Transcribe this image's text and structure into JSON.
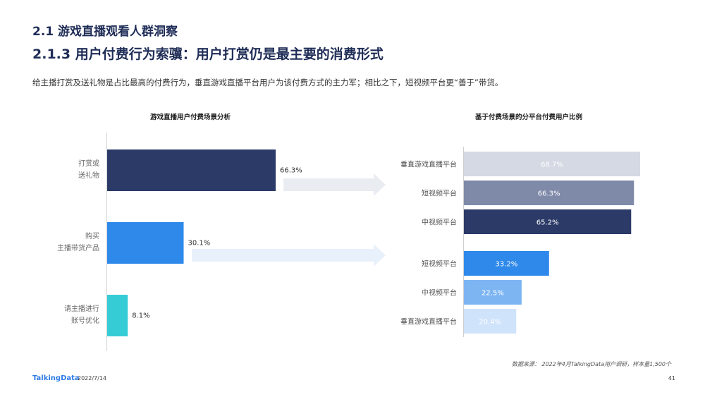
{
  "header": {
    "section": "2.1 游戏直播观看人群洞察",
    "title": "2.1.3 用户付费行为索骥：用户打赏仍是最主要的消费形式",
    "description": "给主播打赏及送礼物是占比最高的付费行为，垂直游戏直播平台用户为该付费方式的主力军；相比之下，短视频平台更“善于”带货。"
  },
  "chart_data": [
    {
      "type": "bar",
      "orientation": "horizontal",
      "title": "游戏直播用户付费场景分析",
      "categories": [
        [
          "打赏或",
          "送礼物"
        ],
        [
          "购买",
          "主播带货产品"
        ],
        [
          "请主播进行",
          "账号优化"
        ]
      ],
      "values": [
        66.3,
        30.1,
        8.1
      ],
      "value_labels": [
        "66.3%",
        "30.1%",
        "8.1%"
      ],
      "colors": [
        "#2b3a67",
        "#2e89ea",
        "#36ccd6"
      ]
    },
    {
      "type": "bar",
      "orientation": "horizontal",
      "title": "基于付费场景的分平台付费用户比例",
      "groups": [
        {
          "categories": [
            "垂直游戏直播平台",
            "短视频平台",
            "中视频平台"
          ],
          "values": [
            68.7,
            66.3,
            65.2
          ],
          "value_labels": [
            "68.7%",
            "66.3%",
            "65.2%"
          ],
          "colors": [
            "#d4d9e3",
            "#7f8aa9",
            "#2b3a67"
          ]
        },
        {
          "categories": [
            "短视频平台",
            "中视频平台",
            "垂直游戏直播平台"
          ],
          "values": [
            33.2,
            22.5,
            20.4
          ],
          "value_labels": [
            "33.2%",
            "22.5%",
            "20.4%"
          ],
          "colors": [
            "#2e89ea",
            "#7db5f3",
            "#cfe3fb"
          ]
        }
      ]
    }
  ],
  "footer": {
    "source": "数据来源： 2022年4月TalkingData用户调研，样本量1,500个",
    "brand": "TalkingData",
    "date": "2022/7/14",
    "page": "41"
  }
}
